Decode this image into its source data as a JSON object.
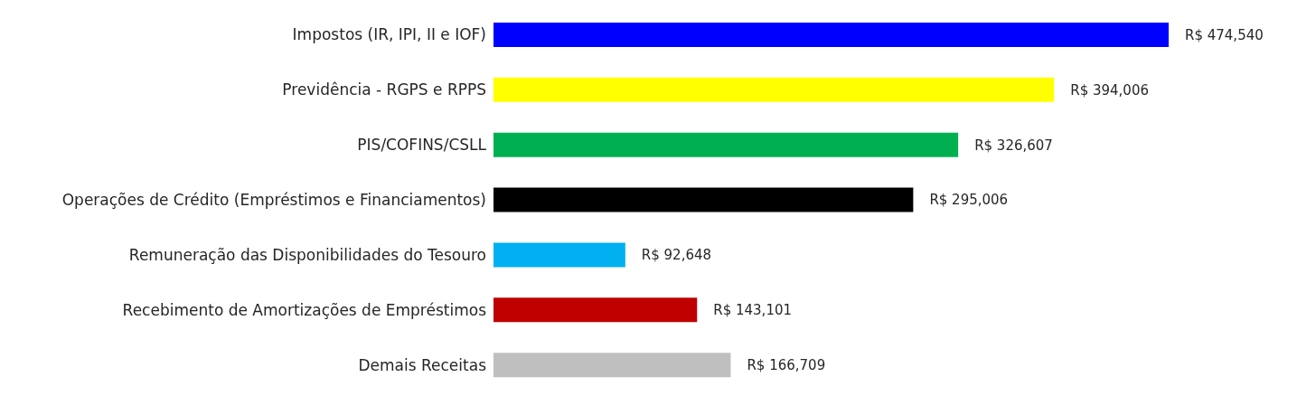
{
  "chart_data": {
    "type": "bar",
    "orientation": "horizontal",
    "categories": [
      "Impostos (IR, IPI, II e IOF)",
      "Previdência - RGPS e RPPS",
      "PIS/COFINS/CSLL",
      "Operações de Crédito (Empréstimos e Financiamentos)",
      "Remuneração das Disponibilidades do Tesouro",
      "Recebimento de Amortizações de Empréstimos",
      "Demais Receitas"
    ],
    "values": [
      474540,
      394006,
      326607,
      295006,
      92648,
      143101,
      166709
    ],
    "colors": [
      "#0000ff",
      "#ffff00",
      "#00b050",
      "#000000",
      "#00b0f0",
      "#c00000",
      "#bfbfbf"
    ],
    "value_labels": [
      "R$ 474,540",
      "R$ 394,006",
      "R$ 326,607",
      "R$ 295,006",
      "R$ 92,648",
      "R$ 143,101",
      "R$ 166,709"
    ]
  }
}
